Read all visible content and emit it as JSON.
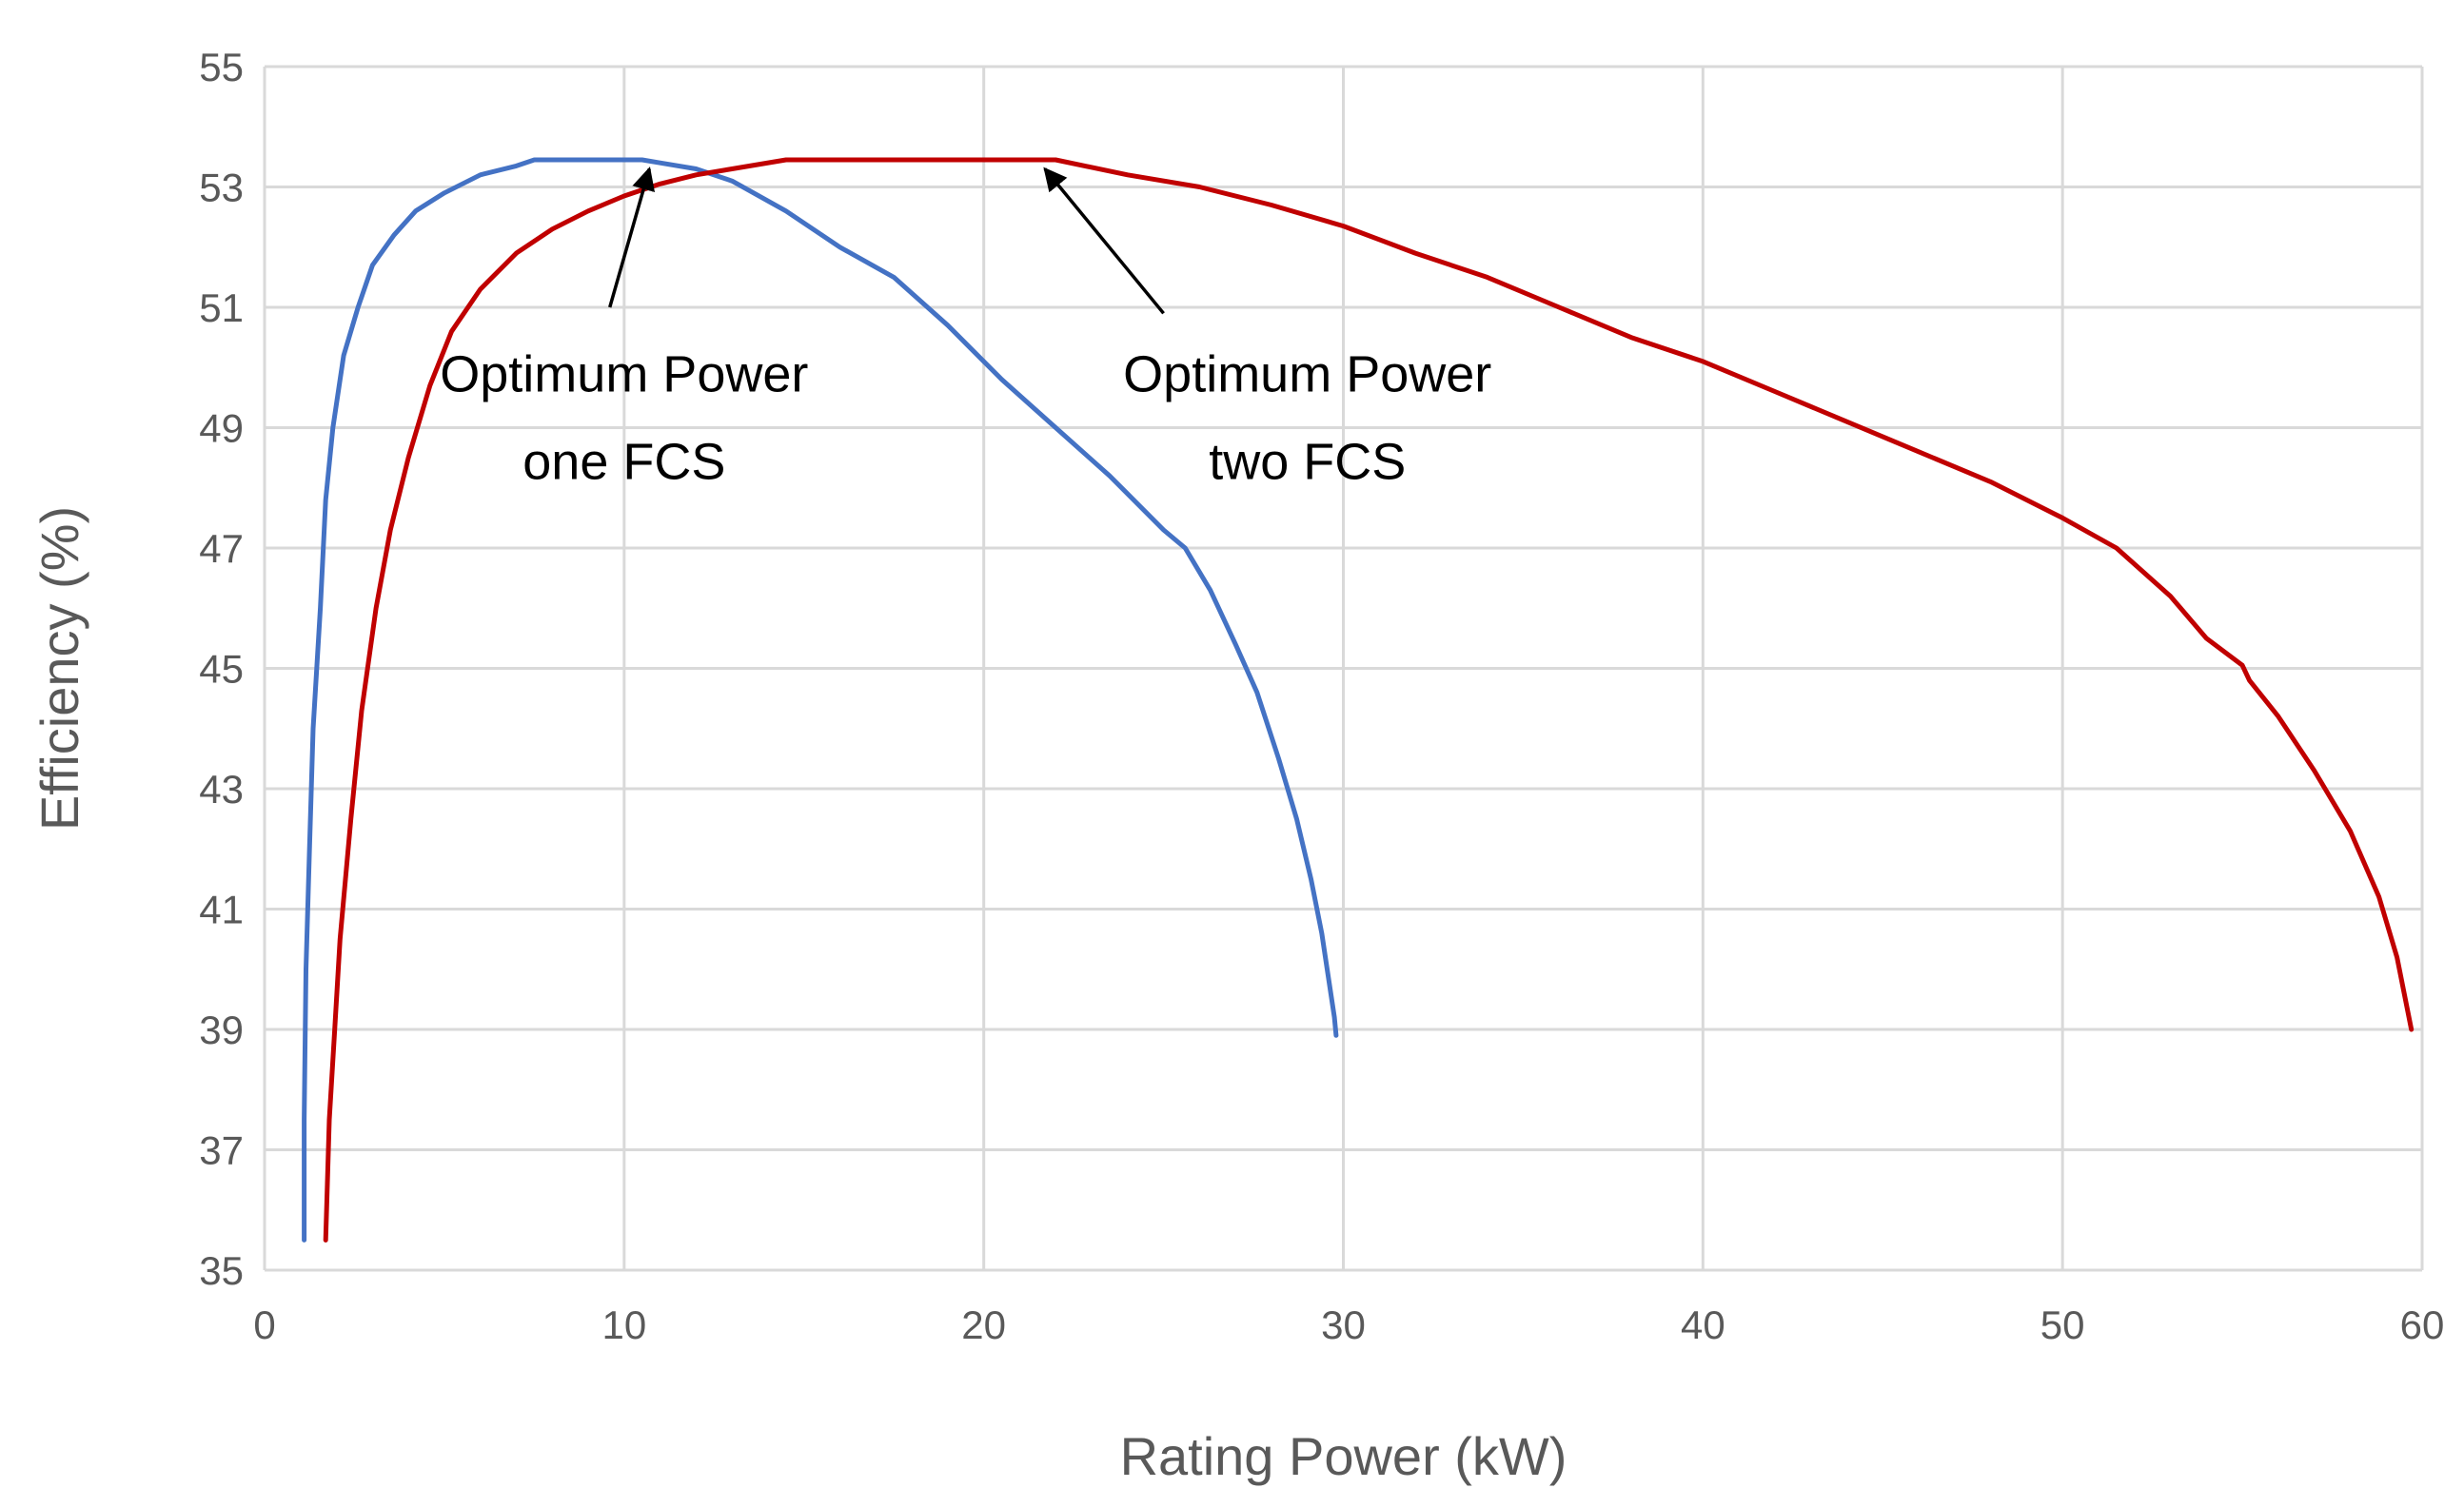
{
  "chart_data": {
    "type": "line",
    "title": "",
    "xlabel": "Rating Power (kW)",
    "ylabel": "Efficiency (%)",
    "xlim": [
      0,
      60
    ],
    "ylim": [
      35,
      55
    ],
    "xticks": [
      0,
      10,
      20,
      30,
      40,
      50,
      60
    ],
    "yticks": [
      35,
      37,
      39,
      41,
      43,
      45,
      47,
      49,
      51,
      53,
      55
    ],
    "grid": true,
    "legend": "none",
    "series": [
      {
        "name": "one FCS",
        "color": "#4472C4",
        "points": [
          [
            1.1,
            35.5
          ],
          [
            1.1,
            37.5
          ],
          [
            1.15,
            40.0
          ],
          [
            1.25,
            42.0
          ],
          [
            1.35,
            44.0
          ],
          [
            1.55,
            46.0
          ],
          [
            1.7,
            47.8
          ],
          [
            1.9,
            49.0
          ],
          [
            2.2,
            50.2
          ],
          [
            2.6,
            51.0
          ],
          [
            3.0,
            51.7
          ],
          [
            3.6,
            52.2
          ],
          [
            4.2,
            52.6
          ],
          [
            5.0,
            52.9
          ],
          [
            6.0,
            53.2
          ],
          [
            7.0,
            53.35
          ],
          [
            7.5,
            53.45
          ],
          [
            9.0,
            53.45
          ],
          [
            10.5,
            53.45
          ],
          [
            11.0,
            53.4
          ],
          [
            12.0,
            53.3
          ],
          [
            13.0,
            53.1
          ],
          [
            14.5,
            52.6
          ],
          [
            16.0,
            52.0
          ],
          [
            17.5,
            51.5
          ],
          [
            19.0,
            50.7
          ],
          [
            20.5,
            49.8
          ],
          [
            22.0,
            49.0
          ],
          [
            23.5,
            48.2
          ],
          [
            25.0,
            47.3
          ],
          [
            25.6,
            47.0
          ],
          [
            26.3,
            46.3
          ],
          [
            27.0,
            45.4
          ],
          [
            27.6,
            44.6
          ],
          [
            28.2,
            43.5
          ],
          [
            28.7,
            42.5
          ],
          [
            29.1,
            41.5
          ],
          [
            29.4,
            40.6
          ],
          [
            29.6,
            39.8
          ],
          [
            29.75,
            39.2
          ],
          [
            29.8,
            38.9
          ]
        ]
      },
      {
        "name": "two FCS",
        "color": "#C00000",
        "points": [
          [
            1.7,
            35.5
          ],
          [
            1.8,
            37.5
          ],
          [
            1.95,
            39.0
          ],
          [
            2.1,
            40.5
          ],
          [
            2.4,
            42.5
          ],
          [
            2.7,
            44.3
          ],
          [
            3.1,
            46.0
          ],
          [
            3.5,
            47.3
          ],
          [
            4.0,
            48.5
          ],
          [
            4.6,
            49.7
          ],
          [
            5.2,
            50.6
          ],
          [
            6.0,
            51.3
          ],
          [
            7.0,
            51.9
          ],
          [
            8.0,
            52.3
          ],
          [
            9.0,
            52.6
          ],
          [
            10.0,
            52.85
          ],
          [
            11.0,
            53.05
          ],
          [
            12.0,
            53.2
          ],
          [
            13.0,
            53.3
          ],
          [
            14.5,
            53.45
          ],
          [
            16.0,
            53.45
          ],
          [
            18.0,
            53.45
          ],
          [
            20.0,
            53.45
          ],
          [
            22.0,
            53.45
          ],
          [
            24.0,
            53.2
          ],
          [
            26.0,
            53.0
          ],
          [
            28.0,
            52.7
          ],
          [
            30.0,
            52.35
          ],
          [
            32.0,
            51.9
          ],
          [
            34.0,
            51.5
          ],
          [
            36.0,
            51.0
          ],
          [
            38.0,
            50.5
          ],
          [
            40.0,
            50.1
          ],
          [
            42.0,
            49.6
          ],
          [
            44.0,
            49.1
          ],
          [
            46.0,
            48.6
          ],
          [
            48.0,
            48.1
          ],
          [
            50.0,
            47.5
          ],
          [
            51.5,
            47.0
          ],
          [
            53.0,
            46.2
          ],
          [
            54.0,
            45.5
          ],
          [
            55.0,
            45.05
          ],
          [
            55.2,
            44.8
          ],
          [
            56.0,
            44.2
          ],
          [
            57.0,
            43.3
          ],
          [
            58.0,
            42.3
          ],
          [
            58.8,
            41.2
          ],
          [
            59.3,
            40.2
          ],
          [
            59.7,
            39.0
          ]
        ]
      }
    ],
    "annotations": [
      {
        "lines": [
          "Optimum Power",
          "one FCS"
        ],
        "text_at": [
          10.0,
          49.6
        ],
        "arrow_from": [
          9.6,
          51.0
        ],
        "arrow_to": [
          10.7,
          53.3
        ]
      },
      {
        "lines": [
          "Optimum Power",
          "two FCS"
        ],
        "text_at": [
          29.0,
          49.6
        ],
        "arrow_from": [
          25.0,
          50.9
        ],
        "arrow_to": [
          21.7,
          53.3
        ]
      }
    ]
  }
}
